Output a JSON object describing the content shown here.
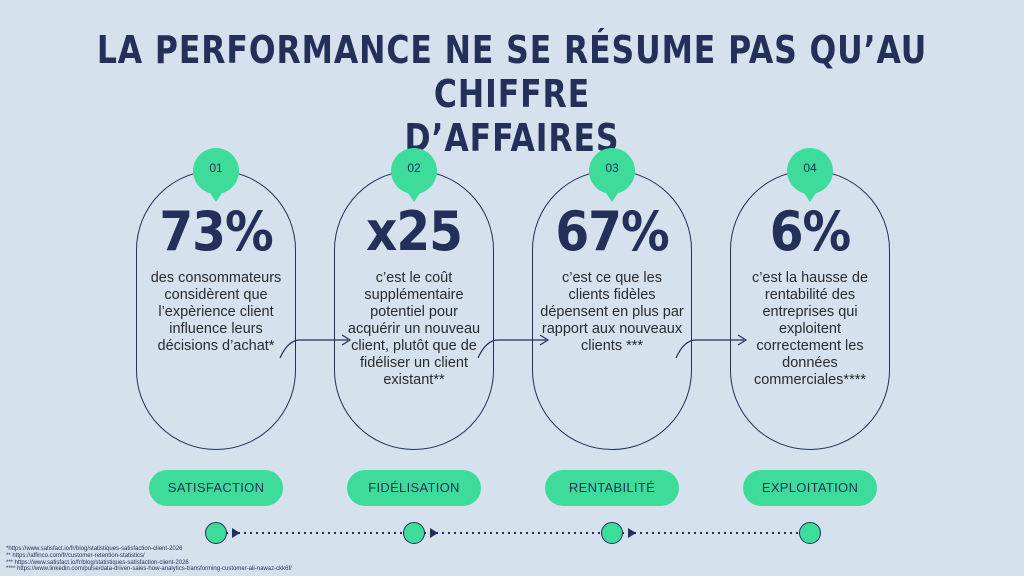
{
  "title": {
    "line1": "LA PERFORMANCE NE SE RÉSUME PAS QU’AU CHIFFRE",
    "line2": "D’AFFAIRES"
  },
  "cards": [
    {
      "number": "01",
      "stat": "73%",
      "description": "des consommateurs considèrent que l’expèrience client influence leurs décisions d’achat*",
      "label": "SATISFACTION"
    },
    {
      "number": "02",
      "stat": "x25",
      "description": "c’est le coût supplémentaire potentiel pour acquérir un nouveau client, plutôt que de fidéliser un client existant**",
      "label": "FIDÉLISATION"
    },
    {
      "number": "03",
      "stat": "67%",
      "description": "c’est ce que les clients fidèles dépensent en plus par rapport aux nouveaux clients ***",
      "label": "RENTABILITÉ"
    },
    {
      "number": "04",
      "stat": "6%",
      "description": "c’est la hausse de rentabilité des entreprises qui exploitent correctement les données commerciales****",
      "label": "EXPLOITATION"
    }
  ],
  "footnotes": [
    "*https://www.satisfact.io/fr/blog/statistiques-satisfaction-client-2026",
    "** https://affinco.com/fr/customer-retention-statistics/",
    "*** https://www.satisfact.io/fr/blog/statistiques-satisfaction-client-2026",
    "**** https://www.linkedin.com/pulse/data-driven-sales-how-analytics-transforming-customer-ali-nawaz-ckk6f/"
  ],
  "colors": {
    "background": "#d5e2ee",
    "navy": "#22305a",
    "accent_green": "#3ddc9a"
  }
}
